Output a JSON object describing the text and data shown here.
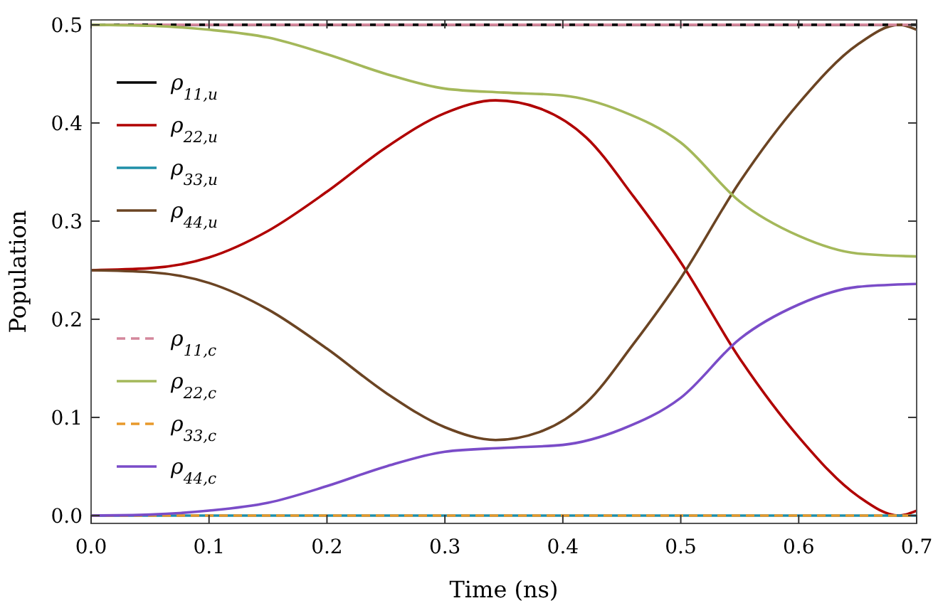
{
  "chart_data": {
    "type": "line",
    "xlabel": "Time (ns)",
    "ylabel": "Population",
    "xlim": [
      0,
      0.7
    ],
    "ylim": [
      -0.008,
      0.505
    ],
    "xticks": [
      {
        "value": 0,
        "label": "0.0"
      },
      0.1,
      0.2,
      0.3,
      0.4,
      0.5,
      0.6,
      0.7
    ],
    "yticks": [
      {
        "value": 0,
        "label": "0.0"
      },
      0.1,
      0.2,
      0.3,
      0.4,
      0.5
    ],
    "grid": false,
    "legend": "left",
    "marker": "none",
    "series": [
      {
        "name": "ρ$_{11,u}$",
        "color": "#000000",
        "line_style": "solid",
        "x": [
          0,
          0.7
        ],
        "values": [
          0.5,
          0.5
        ]
      },
      {
        "name": "ρ$_{22,u}$",
        "color": "#b00000",
        "line_style": "solid",
        "x": [
          0,
          0.05,
          0.1,
          0.15,
          0.2,
          0.25,
          0.3,
          0.343,
          0.38,
          0.42,
          0.46,
          0.5,
          0.55,
          0.6,
          0.65,
          0.685,
          0.7
        ],
        "values": [
          0.25,
          0.252,
          0.263,
          0.29,
          0.33,
          0.375,
          0.41,
          0.423,
          0.415,
          0.385,
          0.325,
          0.258,
          0.16,
          0.08,
          0.02,
          0,
          0.005
        ]
      },
      {
        "name": "ρ$_{33,u}$",
        "color": "#1f8fa8",
        "line_style": "solid",
        "x": [
          0,
          0.7
        ],
        "values": [
          0,
          0
        ]
      },
      {
        "name": "ρ$_{44,u}$",
        "color": "#6b4423",
        "line_style": "solid",
        "x": [
          0,
          0.05,
          0.1,
          0.15,
          0.2,
          0.25,
          0.3,
          0.343,
          0.38,
          0.42,
          0.46,
          0.5,
          0.55,
          0.6,
          0.65,
          0.685,
          0.7
        ],
        "values": [
          0.25,
          0.248,
          0.237,
          0.21,
          0.17,
          0.125,
          0.09,
          0.077,
          0.085,
          0.115,
          0.175,
          0.242,
          0.34,
          0.42,
          0.48,
          0.5,
          0.495
        ]
      },
      {
        "name": "ρ$_{11,c}$",
        "color": "#d4879c",
        "line_style": "dashed",
        "x": [
          0,
          0.7
        ],
        "values": [
          0.5,
          0.5
        ]
      },
      {
        "name": "ρ$_{22,c}$",
        "color": "#a4b85a",
        "line_style": "solid",
        "x": [
          0,
          0.05,
          0.1,
          0.15,
          0.2,
          0.25,
          0.3,
          0.35,
          0.4,
          0.45,
          0.5,
          0.55,
          0.6,
          0.65,
          0.7
        ],
        "values": [
          0.5,
          0.499,
          0.495,
          0.487,
          0.47,
          0.45,
          0.435,
          0.431,
          0.428,
          0.412,
          0.38,
          0.32,
          0.285,
          0.267,
          0.264
        ]
      },
      {
        "name": "ρ$_{33,c}$",
        "color": "#e8992b",
        "line_style": "dashed",
        "x": [
          0,
          0.7
        ],
        "values": [
          0,
          0
        ]
      },
      {
        "name": "ρ$_{44,c}$",
        "color": "#7a4cc8",
        "line_style": "solid",
        "x": [
          0,
          0.05,
          0.1,
          0.15,
          0.2,
          0.25,
          0.3,
          0.35,
          0.4,
          0.45,
          0.5,
          0.55,
          0.6,
          0.65,
          0.7
        ],
        "values": [
          0,
          0.001,
          0.005,
          0.013,
          0.03,
          0.05,
          0.065,
          0.069,
          0.072,
          0.088,
          0.12,
          0.18,
          0.215,
          0.233,
          0.236
        ]
      }
    ]
  }
}
